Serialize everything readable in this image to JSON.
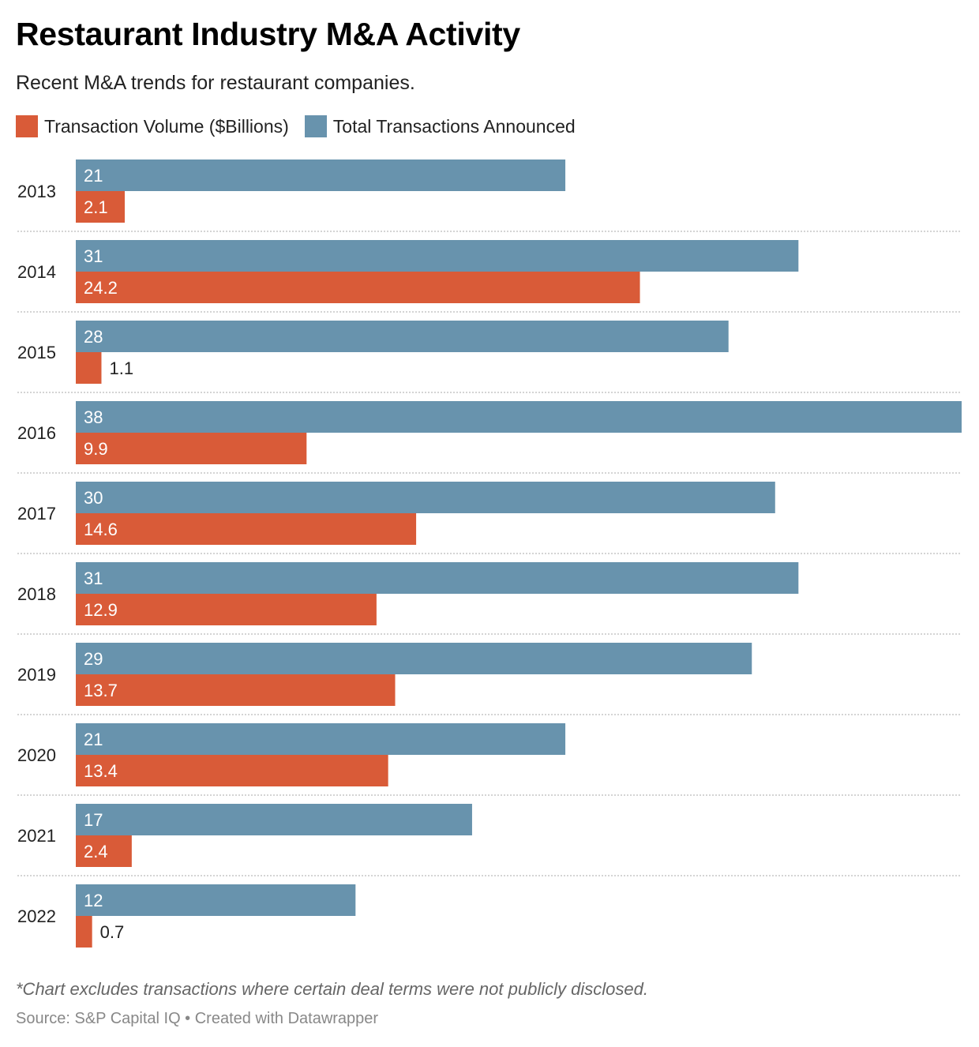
{
  "title": "Restaurant Industry M&A Activity",
  "subtitle": "Recent M&A trends for restaurant companies.",
  "footer": {
    "note": "*Chart excludes transactions where certain deal terms were not publicly disclosed.",
    "source": "Source: S&P Capital IQ • Created with Datawrapper"
  },
  "chart_data": {
    "type": "bar",
    "orientation": "horizontal",
    "title": "Restaurant Industry M&A Activity",
    "categories": [
      "2013",
      "2014",
      "2015",
      "2016",
      "2017",
      "2018",
      "2019",
      "2020",
      "2021",
      "2022"
    ],
    "series": [
      {
        "name": "Total Transactions Announced",
        "color": "#6893ad",
        "values": [
          21,
          31,
          28,
          38,
          30,
          31,
          29,
          21,
          17,
          12
        ]
      },
      {
        "name": "Transaction Volume ($Billions)",
        "color": "#d95b38",
        "values": [
          2.1,
          24.2,
          1.1,
          9.9,
          14.6,
          12.9,
          13.7,
          13.4,
          2.4,
          0.7
        ]
      }
    ],
    "legend_order": [
      "Transaction Volume ($Billions)",
      "Total Transactions Announced"
    ],
    "legend_position": "top-left",
    "xlim": [
      0,
      38
    ],
    "grid": false
  }
}
